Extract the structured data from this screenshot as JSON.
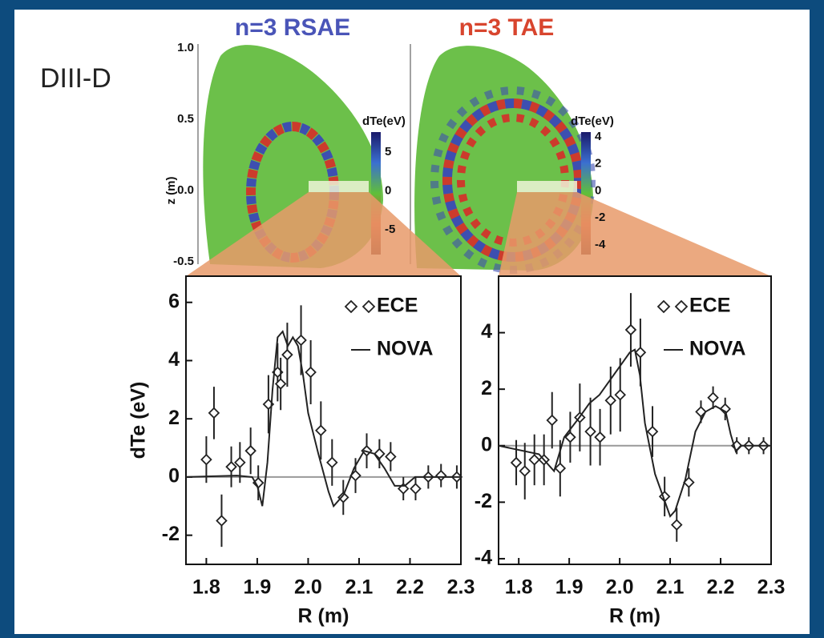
{
  "label": "DIII-D",
  "poloidal_plots": [
    {
      "title": "n=3 RSAE",
      "title_color": "#4a55b8",
      "colorbar_label": "dTe(eV)",
      "colorbar_ticks": [
        "5",
        "0",
        "-5"
      ]
    },
    {
      "title": "n=3 TAE",
      "title_color": "#d8452e",
      "colorbar_label": "dTe(eV)",
      "colorbar_ticks": [
        "4",
        "2",
        "0",
        "-2",
        "-4"
      ]
    }
  ],
  "z_axis": {
    "label": "z (m)",
    "ticks": [
      "1.0",
      "0.5",
      "0.0",
      "-0.5"
    ]
  },
  "chart_data": [
    {
      "type": "scatter",
      "xlabel": "R (m)",
      "ylabel": "dTe (eV)",
      "xlim": [
        1.76,
        2.3
      ],
      "ylim": [
        -3,
        6.9
      ],
      "xticks": [
        1.8,
        1.9,
        {
          "value": 2,
          "label": "2.0"
        },
        2.1,
        2.2,
        2.3
      ],
      "yticks": [
        6,
        4,
        2,
        0,
        -2
      ],
      "hline": 0,
      "series": [
        {
          "name": "ECE",
          "type": "scatter",
          "color": "#222222",
          "x": [
            1.8,
            1.815,
            1.83,
            1.849,
            1.866,
            1.887,
            1.902,
            1.922,
            1.94,
            1.946,
            1.959,
            1.986,
            2.005,
            2.025,
            2.047,
            2.069,
            2.093,
            2.115,
            2.14,
            2.162,
            2.187,
            2.211,
            2.236,
            2.261,
            2.292
          ],
          "values": [
            0.6,
            2.2,
            -1.5,
            0.35,
            0.5,
            0.9,
            -0.2,
            2.5,
            3.6,
            3.2,
            4.2,
            4.7,
            3.6,
            1.6,
            0.5,
            -0.7,
            0.05,
            0.9,
            0.8,
            0.7,
            -0.4,
            -0.4,
            0.0,
            0.05,
            0.0
          ],
          "errors": [
            0.8,
            0.9,
            0.9,
            0.7,
            0.7,
            0.8,
            0.6,
            1.0,
            1.0,
            0.9,
            1.1,
            1.2,
            1.1,
            1.0,
            0.8,
            0.6,
            0.6,
            0.6,
            0.5,
            0.5,
            0.4,
            0.4,
            0.4,
            0.4,
            0.4
          ]
        },
        {
          "name": "NOVA",
          "type": "line",
          "color": "#222222",
          "x": [
            1.76,
            1.86,
            1.89,
            1.9,
            1.91,
            1.92,
            1.93,
            1.94,
            1.95,
            1.96,
            1.97,
            1.98,
            1.99,
            2.0,
            2.02,
            2.04,
            2.05,
            2.07,
            2.09,
            2.11,
            2.13,
            2.15,
            2.17,
            2.19,
            2.21,
            2.25,
            2.3
          ],
          "values": [
            0,
            0.05,
            0,
            -0.3,
            -1.0,
            0.5,
            3.0,
            4.8,
            5.0,
            4.5,
            4.8,
            4.5,
            3.5,
            2.2,
            0.8,
            -0.5,
            -1.0,
            -0.6,
            0.3,
            0.9,
            0.8,
            0.3,
            -0.3,
            -0.3,
            0,
            0,
            0
          ]
        }
      ]
    },
    {
      "type": "scatter",
      "xlabel": "R (m)",
      "xlim": [
        1.76,
        2.3
      ],
      "ylim": [
        -4.2,
        6
      ],
      "xticks": [
        1.8,
        1.9,
        {
          "value": 2,
          "label": "2.0"
        },
        2.1,
        2.2,
        2.3
      ],
      "yticks": [
        4,
        2,
        0,
        -2,
        -4
      ],
      "hline": 0,
      "series": [
        {
          "name": "ECE",
          "type": "scatter",
          "color": "#222222",
          "x": [
            1.795,
            1.812,
            1.831,
            1.85,
            1.866,
            1.882,
            1.902,
            1.921,
            1.942,
            1.961,
            1.982,
            2.001,
            2.022,
            2.041,
            2.065,
            2.089,
            2.113,
            2.137,
            2.161,
            2.185,
            2.209,
            2.232,
            2.256,
            2.285
          ],
          "values": [
            -0.6,
            -0.9,
            -0.5,
            -0.5,
            0.9,
            -0.8,
            0.3,
            1.0,
            0.5,
            0.3,
            1.6,
            1.8,
            4.1,
            3.3,
            0.5,
            -1.8,
            -2.8,
            -1.3,
            1.2,
            1.7,
            1.3,
            0,
            0,
            0
          ],
          "errors": [
            0.8,
            1.0,
            0.9,
            0.9,
            1.0,
            1.0,
            0.9,
            1.2,
            1.2,
            1.0,
            1.2,
            1.3,
            1.3,
            1.2,
            0.9,
            0.7,
            0.6,
            0.5,
            0.4,
            0.4,
            0.4,
            0.3,
            0.3,
            0.3
          ]
        },
        {
          "name": "NOVA",
          "type": "line",
          "color": "#222222",
          "x": [
            1.76,
            1.84,
            1.87,
            1.89,
            1.92,
            1.94,
            1.96,
            1.98,
            2.0,
            2.02,
            2.03,
            2.04,
            2.05,
            2.07,
            2.09,
            2.1,
            2.11,
            2.13,
            2.15,
            2.17,
            2.19,
            2.21,
            2.22,
            2.23,
            2.24,
            2.3
          ],
          "values": [
            0,
            -0.3,
            -0.9,
            0.3,
            1.0,
            1.5,
            1.8,
            2.3,
            2.8,
            3.3,
            3.4,
            2.5,
            0.8,
            -1.0,
            -2.0,
            -2.5,
            -2.3,
            -1.2,
            0.5,
            1.2,
            1.4,
            1.2,
            0.4,
            -0.2,
            0,
            0
          ]
        }
      ]
    }
  ]
}
